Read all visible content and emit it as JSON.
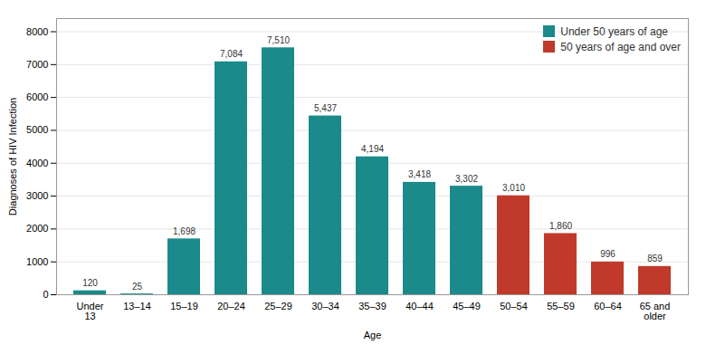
{
  "chart_data": {
    "type": "bar",
    "categories": [
      "Under\n13",
      "13–14",
      "15–19",
      "20–24",
      "25–29",
      "30–34",
      "35–39",
      "40–44",
      "45–49",
      "50–54",
      "55–59",
      "60–64",
      "65 and\nolder"
    ],
    "series": [
      {
        "name": "Under 50 years of age",
        "color": "#1a8a8a",
        "values": [
          120,
          25,
          1698,
          7084,
          7510,
          5437,
          4194,
          3418,
          3302,
          null,
          null,
          null,
          null
        ],
        "value_labels": [
          "120",
          "25",
          "1,698",
          "7,084",
          "7,510",
          "5,437",
          "4,194",
          "3,418",
          "3,302",
          null,
          null,
          null,
          null
        ]
      },
      {
        "name": "50 years of age and over",
        "color": "#c0392b",
        "values": [
          null,
          null,
          null,
          null,
          null,
          null,
          null,
          null,
          null,
          3010,
          1860,
          996,
          859
        ],
        "value_labels": [
          null,
          null,
          null,
          null,
          null,
          null,
          null,
          null,
          null,
          "3,010",
          "1,860",
          "996",
          "859"
        ]
      }
    ],
    "xlabel": "Age",
    "ylabel": "Diagnoses of HIV Infection",
    "ylim": [
      0,
      8400
    ],
    "yticks": [
      0,
      1000,
      2000,
      3000,
      4000,
      5000,
      6000,
      7000,
      8000
    ],
    "grid": true,
    "legend": "upper right",
    "data_labels": true
  }
}
